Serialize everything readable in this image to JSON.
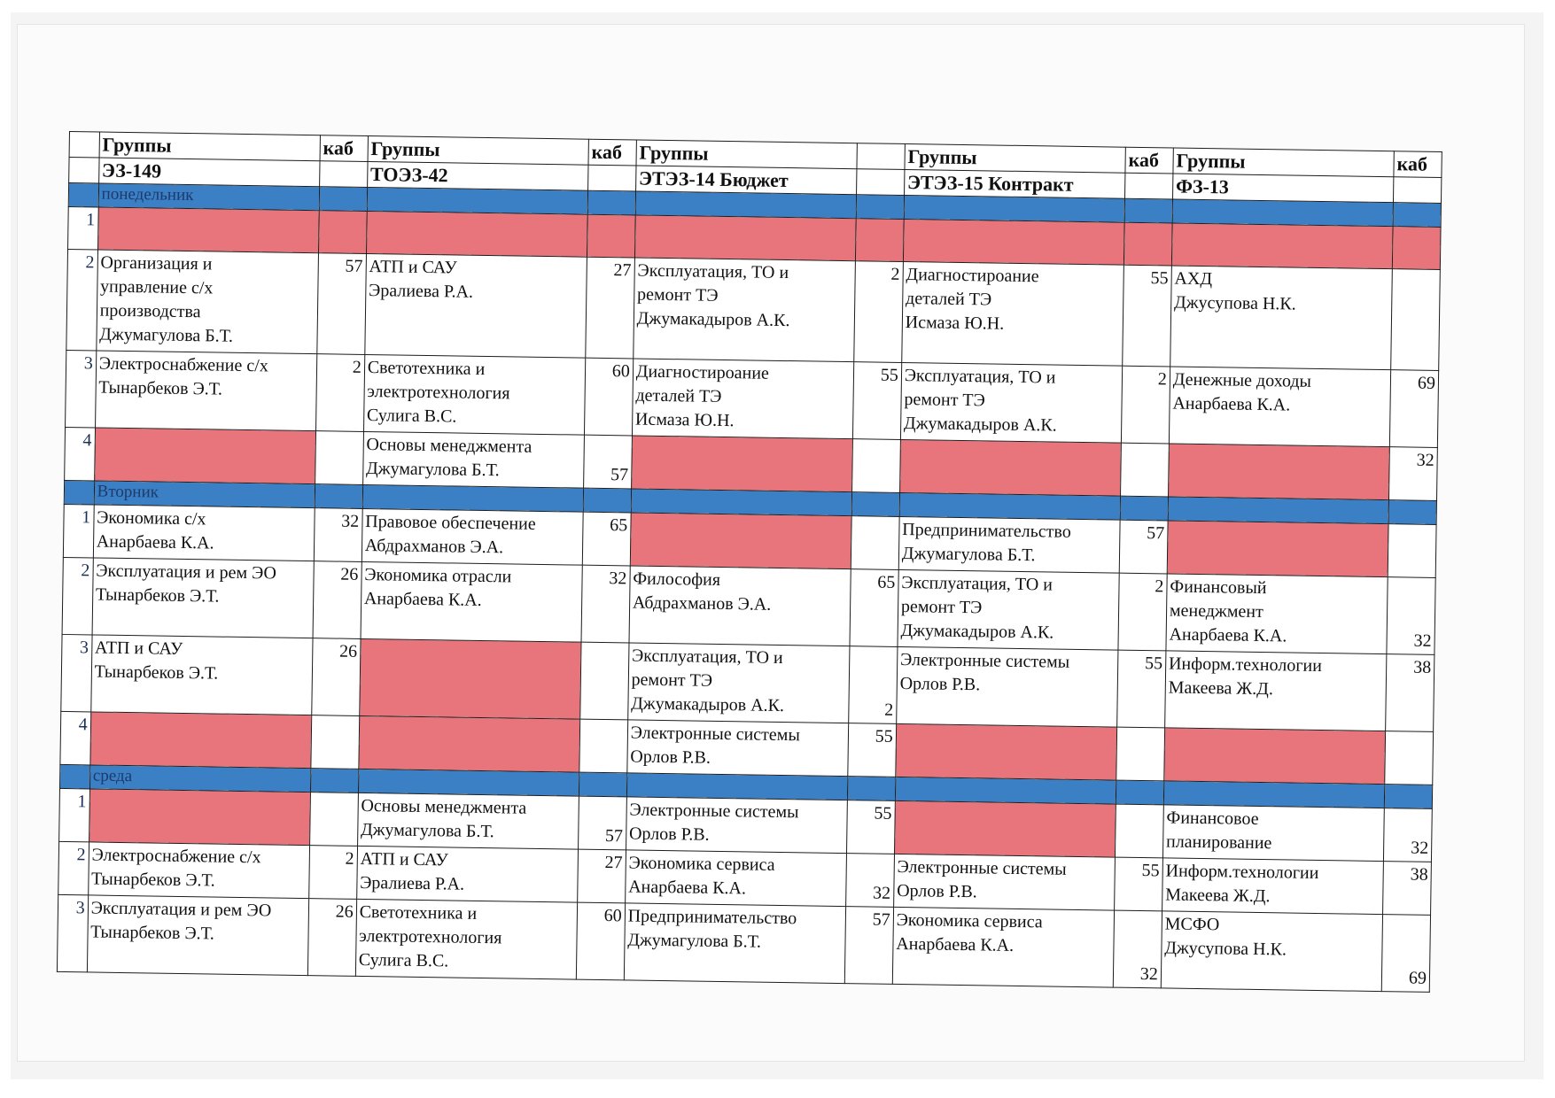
{
  "columns": [
    {
      "label": "Группы",
      "group": "ЭЗ-149",
      "room_label": "каб"
    },
    {
      "label": "Группы",
      "group": "ТОЭЗ-42",
      "room_label": "каб"
    },
    {
      "label": "Группы",
      "group": "ЭТЭЗ-14 Бюджет",
      "room_label": ""
    },
    {
      "label": "Группы",
      "group": "ЭТЭЗ-15 Контракт",
      "room_label": "каб"
    },
    {
      "label": "Группы",
      "group": "ФЗ-13",
      "room_label": "каб"
    }
  ],
  "days": [
    {
      "name": "понедельник",
      "lessons": [
        {
          "n": "1",
          "cells": [
            {
              "red": true
            },
            {
              "red": true
            },
            {
              "red": true
            },
            {
              "red": true
            },
            {
              "red": true
            }
          ]
        },
        {
          "n": "2",
          "cells": [
            {
              "lines": [
                "Организация и",
                "управление с/х",
                "производства",
                "Джумагулова Б.Т."
              ],
              "room": "57"
            },
            {
              "lines": [
                "АТП и САУ",
                "Эралиева Р.А."
              ],
              "room": "27"
            },
            {
              "lines": [
                "Эксплуатация, ТО и",
                "ремонт ТЭ",
                "Джумакадыров А.К."
              ],
              "room": "2"
            },
            {
              "lines": [
                "Диагностироание",
                "деталей ТЭ",
                "Исмаза Ю.Н."
              ],
              "room": "55"
            },
            {
              "lines": [
                "АХД",
                "Джусупова Н.К."
              ],
              "room": ""
            }
          ]
        },
        {
          "n": "3",
          "cells": [
            {
              "lines": [
                "Электроснабжение с/х",
                "Тынарбеков Э.Т."
              ],
              "room": "2"
            },
            {
              "lines": [
                "Светотехника и",
                "электротехнология",
                "Сулига В.С."
              ],
              "room": "60"
            },
            {
              "lines": [
                "Диагностироание",
                "деталей ТЭ",
                "Исмаза Ю.Н."
              ],
              "room": "55"
            },
            {
              "lines": [
                "Эксплуатация, ТО и",
                "ремонт ТЭ",
                "Джумакадыров А.К."
              ],
              "room": "2"
            },
            {
              "lines": [
                "Денежные доходы",
                "Анарбаева К.А."
              ],
              "room": "69"
            }
          ]
        },
        {
          "n": "4",
          "cells": [
            {
              "red": true
            },
            {
              "lines": [
                "Основы менеджмента",
                "Джумагулова Б.Т."
              ],
              "room": "57",
              "room_bottom": true
            },
            {
              "red": true
            },
            {
              "red": true
            },
            {
              "red": true,
              "room": "32"
            }
          ]
        }
      ]
    },
    {
      "name": "Вторник",
      "lessons": [
        {
          "n": "1",
          "cells": [
            {
              "lines": [
                "Экономика с/х",
                "Анарбаева К.А."
              ],
              "room": "32"
            },
            {
              "lines": [
                "Правовое обеспечение",
                "Абдрахманов Э.А."
              ],
              "room": "65"
            },
            {
              "red": true
            },
            {
              "lines": [
                "Предпринимательство",
                "Джумагулова Б.Т."
              ],
              "room": "57"
            },
            {
              "red": true
            }
          ]
        },
        {
          "n": "2",
          "cells": [
            {
              "lines": [
                "Эксплуатация и рем ЭО",
                "Тынарбеков Э.Т."
              ],
              "room": "26"
            },
            {
              "lines": [
                "Экономика отрасли",
                "Анарбаева К.А."
              ],
              "room": "32"
            },
            {
              "lines": [
                "Философия",
                "Абдрахманов Э.А."
              ],
              "room": "65"
            },
            {
              "lines": [
                "Эксплуатация, ТО и",
                "ремонт ТЭ",
                "Джумакадыров А.К."
              ],
              "room": "2"
            },
            {
              "lines": [
                "Финансовый",
                "менеджмент",
                "Анарбаева К.А."
              ],
              "room": "32",
              "room_bottom": true
            }
          ]
        },
        {
          "n": "3",
          "cells": [
            {
              "lines": [
                "АТП и САУ",
                "Тынарбеков Э.Т."
              ],
              "room": "26"
            },
            {
              "red": true
            },
            {
              "lines": [
                "Эксплуатация, ТО и",
                "ремонт ТЭ",
                "Джумакадыров А.К."
              ],
              "room": "2",
              "room_bottom": true
            },
            {
              "lines": [
                "Электронные системы",
                "Орлов Р.В."
              ],
              "room": "55"
            },
            {
              "lines": [
                "Информ.технологии",
                "Макеева Ж.Д."
              ],
              "room": "38"
            }
          ]
        },
        {
          "n": "4",
          "cells": [
            {
              "red": true
            },
            {
              "red": true
            },
            {
              "lines": [
                "Электронные системы",
                "Орлов Р.В."
              ],
              "room": "55"
            },
            {
              "red": true
            },
            {
              "red": true
            }
          ]
        }
      ]
    },
    {
      "name": "среда",
      "lessons": [
        {
          "n": "1",
          "cells": [
            {
              "red": true
            },
            {
              "lines": [
                "Основы менеджмента",
                "Джумагулова Б.Т."
              ],
              "room": "57",
              "room_bottom": true
            },
            {
              "lines": [
                "Электронные системы",
                "Орлов Р.В."
              ],
              "room": "55"
            },
            {
              "red": true
            },
            {
              "lines": [
                "Финансовое",
                "планирование"
              ],
              "room": "32",
              "room_bottom": true
            }
          ]
        },
        {
          "n": "2",
          "cells": [
            {
              "lines": [
                "Электроснабжение с/х",
                "Тынарбеков Э.Т."
              ],
              "room": "2"
            },
            {
              "lines": [
                "АТП и САУ",
                "Эралиева Р.А."
              ],
              "room": "27"
            },
            {
              "lines": [
                "Экономика сервиса",
                "Анарбаева К.А."
              ],
              "room": "32",
              "room_bottom": true
            },
            {
              "lines": [
                "Электронные системы",
                "Орлов Р.В."
              ],
              "room": "55"
            },
            {
              "lines": [
                "Информ.технологии",
                "Макеева Ж.Д."
              ],
              "room": "38"
            }
          ]
        },
        {
          "n": "3",
          "cells": [
            {
              "lines": [
                "Эксплуатация и рем ЭО",
                "Тынарбеков Э.Т."
              ],
              "room": "26"
            },
            {
              "lines": [
                "Светотехника и",
                "электротехнология",
                "Сулига В.С."
              ],
              "room": "60"
            },
            {
              "lines": [
                "Предпринимательство",
                "Джумагулова Б.Т."
              ],
              "room": "57"
            },
            {
              "lines": [
                "Экономика сервиса",
                "Анарбаева К.А."
              ],
              "room": "32",
              "room_bottom": true
            },
            {
              "lines": [
                "МСФО",
                "Джусупова Н.К."
              ],
              "room": "69",
              "room_bottom": true
            }
          ]
        }
      ]
    }
  ]
}
